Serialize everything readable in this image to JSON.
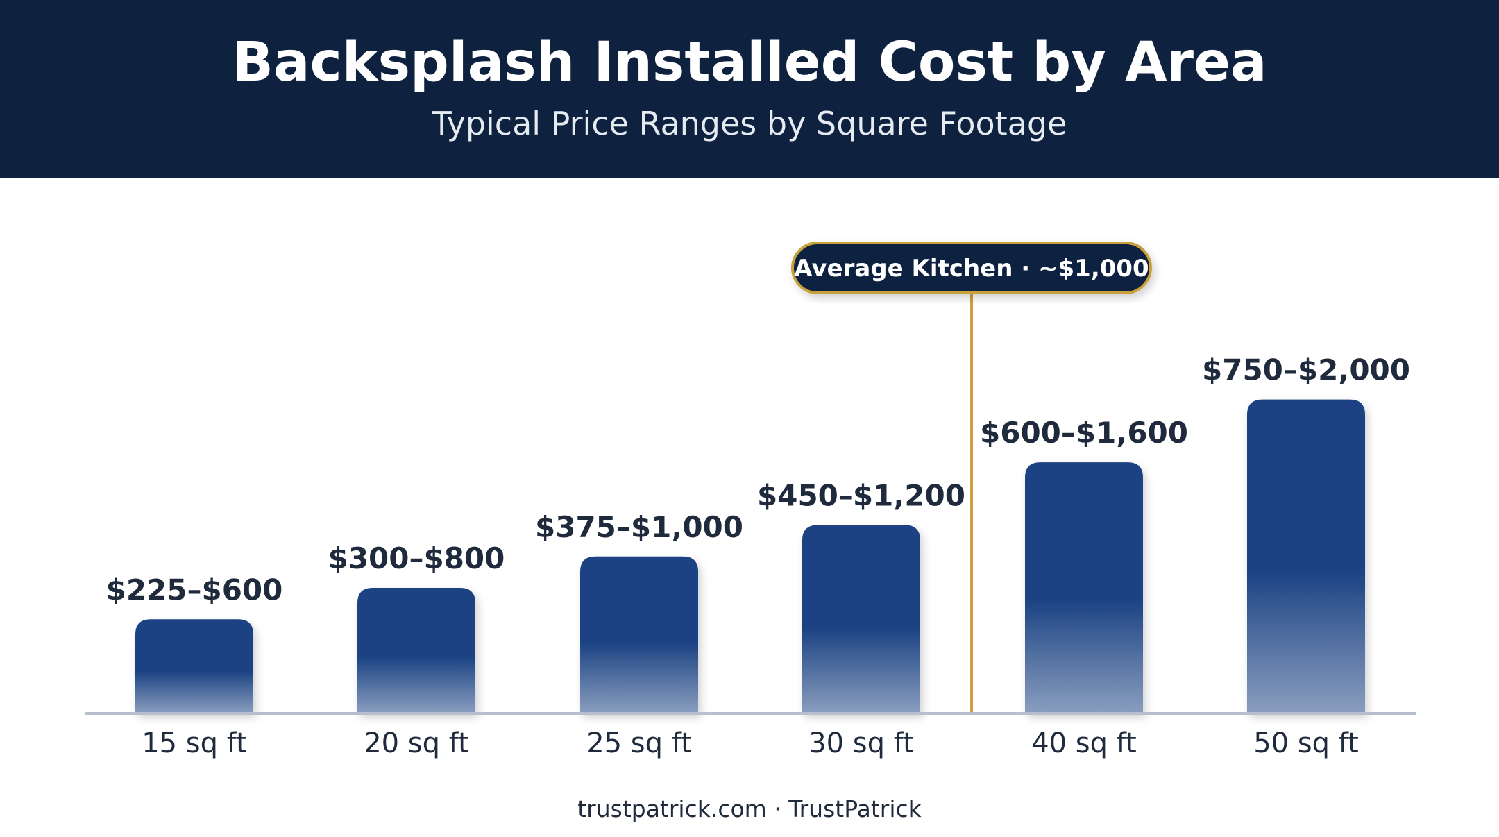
{
  "header": {
    "title": "Backsplash Installed Cost by Area",
    "subtitle": "Typical Price Ranges by Square Footage"
  },
  "footer": {
    "source": "trustpatrick.com · TrustPatrick"
  },
  "colors": {
    "header_bg": "#0e213f",
    "bar_top": "#1c4383",
    "bar_bottom": "#8a9ebf",
    "annotation_border": "#c9a13a",
    "annotation_line": "#d2a03a",
    "axis_line": "#b8bfcc",
    "text_dark": "#1f2b3d"
  },
  "chart_data": {
    "type": "bar",
    "title": "Backsplash Installed Cost by Area",
    "subtitle": "Typical Price Ranges by Square Footage",
    "categories": [
      "15 sq ft",
      "20 sq ft",
      "25 sq ft",
      "30 sq ft",
      "40 sq ft",
      "50 sq ft"
    ],
    "series": [
      {
        "low": [
          225,
          300,
          375,
          450,
          600,
          750
        ],
        "high": [
          600,
          800,
          1000,
          1200,
          1600,
          2000
        ]
      }
    ],
    "data_labels": [
      "$225–$600",
      "$300–$800",
      "$375–$1,000",
      "$450–$1,200",
      "$600–$1,600",
      "$750–$2,000"
    ],
    "xlabel": "",
    "ylabel": "",
    "ylim": [
      0,
      2000
    ],
    "grid": false,
    "annotation": {
      "label": "Average Kitchen · ~$1,000",
      "value": 1000,
      "position": "between 30 sq ft and 40 sq ft"
    }
  }
}
